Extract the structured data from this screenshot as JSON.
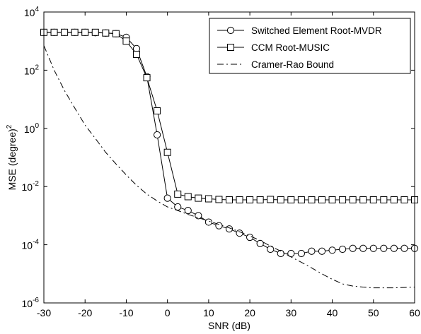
{
  "chart_data": {
    "type": "line",
    "xlabel": "SNR (dB)",
    "ylabel_main": "MSE (degree)",
    "ylabel_sup": "2",
    "xlim": [
      -30,
      60
    ],
    "ylim": [
      1e-06,
      10000
    ],
    "yscale": "log",
    "xticks": [
      "-30",
      "-20",
      "-10",
      "0",
      "10",
      "20",
      "30",
      "40",
      "50",
      "60"
    ],
    "yticks": [
      {
        "base": "10",
        "exp": "4"
      },
      {
        "base": "10",
        "exp": "2"
      },
      {
        "base": "10",
        "exp": "0"
      },
      {
        "base": "10",
        "exp": "-2"
      },
      {
        "base": "10",
        "exp": "-4"
      },
      {
        "base": "10",
        "exp": "-6"
      }
    ],
    "grid": false,
    "legend_position": "top-right",
    "series": [
      {
        "name": "Switched Element Root-MVDR",
        "style": "solid",
        "marker": "circle",
        "color": "#000000",
        "x": [
          -30,
          -27.5,
          -25,
          -22.5,
          -20,
          -17.5,
          -15,
          -12.5,
          -10,
          -7.5,
          -5,
          -2.5,
          0,
          2.5,
          5,
          7.5,
          10,
          12.5,
          15,
          17.5,
          20,
          22.5,
          25,
          27.5,
          30,
          32.5,
          35,
          37.5,
          40,
          42.5,
          45,
          47.5,
          50,
          52.5,
          55,
          57.5,
          60
        ],
        "y": [
          2000,
          2000,
          2000,
          2000,
          2000,
          1950,
          1900,
          1800,
          1350,
          550,
          60,
          0.6,
          0.004,
          0.002,
          0.0015,
          0.001,
          0.0006,
          0.00045,
          0.00035,
          0.00025,
          0.00018,
          0.00011,
          7e-05,
          5e-05,
          5e-05,
          5e-05,
          6e-05,
          6e-05,
          6.5e-05,
          7e-05,
          7.5e-05,
          7.5e-05,
          7.5e-05,
          7.5e-05,
          7.5e-05,
          7.5e-05,
          7.5e-05
        ]
      },
      {
        "name": "CCM Root-MUSIC",
        "style": "solid",
        "marker": "square",
        "color": "#000000",
        "x": [
          -30,
          -27.5,
          -25,
          -22.5,
          -20,
          -17.5,
          -15,
          -12.5,
          -10,
          -7.5,
          -5,
          -2.5,
          0,
          2.5,
          5,
          7.5,
          10,
          12.5,
          15,
          17.5,
          20,
          22.5,
          25,
          27.5,
          30,
          32.5,
          35,
          37.5,
          40,
          42.5,
          45,
          47.5,
          50,
          52.5,
          55,
          57.5,
          60
        ],
        "y": [
          2000,
          2000,
          2000,
          2000,
          2000,
          2000,
          1900,
          1800,
          1000,
          350,
          55,
          4,
          0.15,
          0.0055,
          0.0045,
          0.004,
          0.0038,
          0.0036,
          0.0035,
          0.0035,
          0.0035,
          0.0035,
          0.0036,
          0.0035,
          0.0035,
          0.0035,
          0.0035,
          0.0035,
          0.0035,
          0.0035,
          0.0035,
          0.0035,
          0.0035,
          0.0035,
          0.0035,
          0.0035,
          0.0035
        ]
      },
      {
        "name": "Cramer-Rao Bound",
        "style": "dashdot",
        "marker": "none",
        "color": "#000000",
        "x": [
          -30,
          -27.5,
          -25,
          -22.5,
          -20,
          -17.5,
          -15,
          -12.5,
          -10,
          -7.5,
          -5,
          -2.5,
          0,
          2.5,
          5,
          7.5,
          10,
          12.5,
          15,
          17.5,
          20,
          22.5,
          25,
          27.5,
          30,
          32.5,
          35,
          37.5,
          40,
          42.5,
          45,
          47.5,
          50,
          52.5,
          55,
          57.5,
          60
        ],
        "y": [
          700,
          100,
          20,
          5,
          1.3,
          0.45,
          0.15,
          0.06,
          0.025,
          0.011,
          0.0055,
          0.0032,
          0.002,
          0.0015,
          0.0011,
          0.00085,
          0.00065,
          0.0005,
          0.00038,
          0.00028,
          0.0002,
          0.00014,
          9e-05,
          6e-05,
          3.8e-05,
          2.5e-05,
          1.6e-05,
          1e-05,
          6.5e-06,
          4.5e-06,
          3.8e-06,
          3.5e-06,
          3.3e-06,
          3.3e-06,
          3.3e-06,
          3.4e-06,
          3.5e-06
        ]
      }
    ]
  }
}
